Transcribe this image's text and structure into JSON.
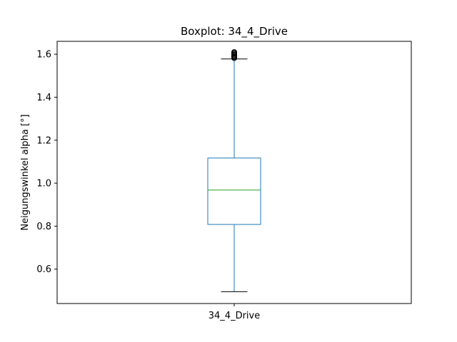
{
  "chart_data": {
    "type": "box",
    "title": "Boxplot: 34_4_Drive",
    "xlabel": "",
    "ylabel": "Neigungswinkel alpha [°]",
    "categories": [
      "34_4_Drive"
    ],
    "ylim": [
      0.44,
      1.66
    ],
    "yticks": [
      0.6,
      0.8,
      1.0,
      1.2,
      1.4,
      1.6
    ],
    "ytick_labels": [
      "0.6",
      "0.8",
      "1.0",
      "1.2",
      "1.4",
      "1.6"
    ],
    "grid": false,
    "boxes": [
      {
        "category": "34_4_Drive",
        "whisker_low": 0.495,
        "q1": 0.808,
        "median": 0.968,
        "q3": 1.117,
        "whisker_high": 1.578,
        "outliers": [
          1.582,
          1.586,
          1.59,
          1.594,
          1.598,
          1.602,
          1.606,
          1.61
        ]
      }
    ],
    "colors": {
      "box": "#1f77b4",
      "median": "#2ca02c",
      "caps": "#000000",
      "outlier_edge": "#000000"
    }
  }
}
